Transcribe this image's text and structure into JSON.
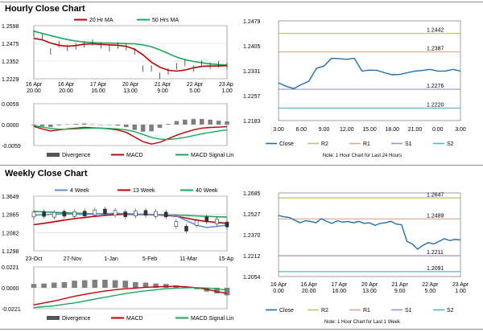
{
  "colors": {
    "ma_short": "#c00000",
    "ma_long": "#1aa85a",
    "close": "#1f6fae",
    "r2": "#b9c76a",
    "r1": "#e0a58a",
    "s1": "#9b92c8",
    "s2": "#5ab4cf",
    "price_blue": "#5b8fd6",
    "hist": "#7f7f7f",
    "axis": "#888888",
    "grid": "#d4d4d4"
  },
  "hourly": {
    "title": "Hourly Close Chart",
    "ma_chart": {
      "type": "line",
      "legend": [
        "20 Hr MA",
        "50 Hrs MA"
      ],
      "yticks": [
        "1.2598",
        "1.2475",
        "1.2352",
        "1.2229"
      ],
      "yrange": [
        1.2229,
        1.2598
      ],
      "xticks": [
        [
          "16 Apr",
          "20.00"
        ],
        [
          "16 Apr",
          "20.00"
        ],
        [
          "17 Apr",
          "16.00"
        ],
        [
          "20 Apr",
          "13.00"
        ],
        [
          "21 Apr",
          "9.00"
        ],
        [
          "22 Apr",
          "5.00"
        ],
        [
          "23 Apr",
          "1.00"
        ]
      ],
      "ma20": [
        1.251,
        1.25,
        1.2478,
        1.2462,
        1.2455,
        1.246,
        1.247,
        1.2472,
        1.2468,
        1.2465,
        1.2462,
        1.2455,
        1.2435,
        1.2395,
        1.2345,
        1.231,
        1.2288,
        1.2282,
        1.229,
        1.2305,
        1.2315,
        1.2318,
        1.2318,
        1.232
      ],
      "ma50": [
        1.256,
        1.2545,
        1.253,
        1.2515,
        1.2502,
        1.2492,
        1.2485,
        1.248,
        1.2478,
        1.2477,
        1.2476,
        1.2474,
        1.2472,
        1.2465,
        1.2452,
        1.243,
        1.2405,
        1.238,
        1.2362,
        1.235,
        1.234,
        1.2333,
        1.2328,
        1.2325
      ],
      "price": [
        1.2545,
        1.252,
        1.242,
        1.247,
        1.2445,
        1.2455,
        1.2468,
        1.248,
        1.2462,
        1.244,
        1.246,
        1.245,
        1.242,
        1.23,
        1.23,
        1.225,
        1.228,
        1.2315,
        1.234,
        1.23,
        1.2335,
        1.232,
        1.233,
        1.232
      ]
    },
    "macd_chart": {
      "yticks": [
        "0.0059",
        "0.0000",
        "-0.0059"
      ],
      "yrange": [
        -0.0059,
        0.0059
      ],
      "legend": [
        "Divergence",
        "MACD",
        "MACD Signal Line"
      ],
      "macd": [
        -0.0005,
        -0.0012,
        -0.0018,
        -0.0015,
        -0.0012,
        -0.001,
        -0.0008,
        -0.0009,
        -0.001,
        -0.0012,
        -0.0015,
        -0.0022,
        -0.0035,
        -0.0048,
        -0.0055,
        -0.005,
        -0.004,
        -0.003,
        -0.0022,
        -0.0015,
        -0.001,
        -0.0008,
        -0.0007,
        -0.0006
      ],
      "signal": [
        -0.0003,
        -0.0007,
        -0.0011,
        -0.0013,
        -0.0013,
        -0.0012,
        -0.0011,
        -0.001,
        -0.001,
        -0.0011,
        -0.0012,
        -0.0015,
        -0.002,
        -0.0028,
        -0.0036,
        -0.0041,
        -0.0042,
        -0.004,
        -0.0036,
        -0.0031,
        -0.0026,
        -0.0022,
        -0.0018,
        -0.0015
      ],
      "divergence": [
        -0.0002,
        -0.0005,
        -0.0007,
        -0.0002,
        0.0001,
        0.0002,
        0.0003,
        0.0001,
        0.0,
        -0.0001,
        -0.0003,
        -0.0007,
        -0.0015,
        -0.002,
        -0.0019,
        -0.0009,
        0.0002,
        0.001,
        0.0014,
        0.0016,
        0.0016,
        0.0014,
        0.0011,
        0.0009
      ]
    },
    "pivot_chart": {
      "type": "line",
      "yticks": [
        "1.2479",
        "1.2405",
        "1.2331",
        "1.2257",
        "1.2183"
      ],
      "yrange": [
        1.2183,
        1.2479
      ],
      "xticks": [
        "3.00",
        "6.00",
        "9.00",
        "12.00",
        "15.00",
        "18.00",
        "21.00",
        "0.00",
        "3.00"
      ],
      "close": [
        1.2295,
        1.2285,
        1.2278,
        1.229,
        1.23,
        1.2338,
        1.2345,
        1.2368,
        1.2367,
        1.2365,
        1.2368,
        1.233,
        1.2333,
        1.2332,
        1.2325,
        1.2319,
        1.232,
        1.2325,
        1.233,
        1.2332,
        1.2335,
        1.233,
        1.233,
        1.2335,
        1.233
      ],
      "levels": [
        {
          "name": "R2",
          "value": 1.2442,
          "label": "1.2442"
        },
        {
          "name": "R1",
          "value": 1.2387,
          "label": "1.2387"
        },
        {
          "name": "S1",
          "value": 1.2276,
          "label": "1.2276"
        },
        {
          "name": "S2",
          "value": 1.222,
          "label": "1.2220"
        }
      ],
      "legend": [
        "Close",
        "R2",
        "R1",
        "S1",
        "S2"
      ],
      "note": "Note: 1 Hour Chart for Last 24 Hours"
    }
  },
  "weekly": {
    "title": "Weekly Close Chart",
    "ma_chart": {
      "type": "line",
      "legend": [
        "4 Week",
        "13 Week",
        "40 Week"
      ],
      "yticks": [
        "1.3649",
        "1.2865",
        "1.2082",
        "1.1298"
      ],
      "yrange": [
        1.1298,
        1.3649
      ],
      "xticks": [
        "23-Oct",
        "27-Nov",
        "1-Jan",
        "5-Feb",
        "11-Mar",
        "15-Apr"
      ],
      "w4": [
        1.283,
        1.285,
        1.287,
        1.288,
        1.287,
        1.286,
        1.288,
        1.29,
        1.291,
        1.29,
        1.288,
        1.287,
        1.286,
        1.285,
        1.28,
        1.26,
        1.24,
        1.23,
        1.235,
        1.24
      ],
      "w13": [
        1.242,
        1.248,
        1.255,
        1.262,
        1.268,
        1.273,
        1.278,
        1.282,
        1.285,
        1.287,
        1.287,
        1.286,
        1.285,
        1.282,
        1.278,
        1.27,
        1.262,
        1.256,
        1.252,
        1.248
      ],
      "w40": [
        1.299,
        1.297,
        1.295,
        1.2935,
        1.292,
        1.2905,
        1.289,
        1.288,
        1.287,
        1.2865,
        1.286,
        1.2855,
        1.285,
        1.2845,
        1.2835,
        1.282,
        1.28,
        1.278,
        1.276,
        1.2745
      ],
      "price": [
        1.286,
        1.288,
        1.285,
        1.289,
        1.288,
        1.29,
        1.295,
        1.299,
        1.293,
        1.287,
        1.29,
        1.293,
        1.288,
        1.286,
        1.245,
        1.225,
        1.25,
        1.265,
        1.256,
        1.243
      ]
    },
    "macd_chart": {
      "yticks": [
        "0.0221",
        "0.0000",
        "-0.0221"
      ],
      "yrange": [
        -0.0221,
        0.0221
      ],
      "legend": [
        "Divergence",
        "MACD",
        "MACD Signal Line"
      ],
      "macd": [
        -0.018,
        -0.016,
        -0.014,
        -0.0115,
        -0.009,
        -0.007,
        -0.005,
        -0.0035,
        -0.002,
        -0.001,
        -0.0003,
        0.0005,
        0.001,
        0.0014,
        0.0016,
        0.001,
        0.0,
        -0.0015,
        -0.004,
        -0.006
      ],
      "signal": [
        -0.021,
        -0.02,
        -0.019,
        -0.0175,
        -0.016,
        -0.014,
        -0.012,
        -0.01,
        -0.008,
        -0.0062,
        -0.0045,
        -0.0032,
        -0.002,
        -0.001,
        -0.0003,
        0.0,
        0.0002,
        -0.0002,
        -0.0012,
        -0.0025
      ],
      "divergence": [
        0.004,
        0.0045,
        0.0055,
        0.006,
        0.0075,
        0.008,
        0.0085,
        0.0085,
        0.008,
        0.0075,
        0.006,
        0.0055,
        0.0045,
        0.004,
        0.0025,
        0.001,
        -0.0015,
        -0.004,
        -0.006,
        -0.008
      ]
    },
    "pivot_chart": {
      "type": "line",
      "yticks": [
        "1.2685",
        "1.2527",
        "1.2370",
        "1.2212",
        "1.2054"
      ],
      "yrange": [
        1.2054,
        1.2685
      ],
      "xticks": [
        [
          "16 Apr",
          "0.00"
        ],
        [
          "16 Apr",
          "20.00"
        ],
        [
          "17 Apr",
          "16.00"
        ],
        [
          "20 Apr",
          "13.00"
        ],
        [
          "21 Apr",
          "9.00"
        ],
        [
          "22 Apr",
          "5.00"
        ],
        [
          "23 Apr",
          "1.00"
        ]
      ],
      "close": [
        1.2515,
        1.2505,
        1.25,
        1.248,
        1.246,
        1.2475,
        1.247,
        1.246,
        1.249,
        1.247,
        1.2455,
        1.2475,
        1.2465,
        1.247,
        1.246,
        1.247,
        1.2455,
        1.246,
        1.244,
        1.2455,
        1.246,
        1.247,
        1.245,
        1.2445,
        1.232,
        1.23,
        1.226,
        1.229,
        1.231,
        1.23,
        1.232,
        1.234,
        1.2325,
        1.2335,
        1.233
      ],
      "levels": [
        {
          "name": "R2",
          "value": 1.2647,
          "label": "1.2647"
        },
        {
          "name": "R1",
          "value": 1.2489,
          "label": "1.2489"
        },
        {
          "name": "S1",
          "value": 1.2211,
          "label": "1.2211"
        },
        {
          "name": "S2",
          "value": 1.2091,
          "label": "1.2091"
        }
      ],
      "legend": [
        "Close",
        "R2",
        "R1",
        "S1",
        "S2"
      ],
      "note": "Note: 1 Hour Chart for Last 1 Week"
    }
  }
}
